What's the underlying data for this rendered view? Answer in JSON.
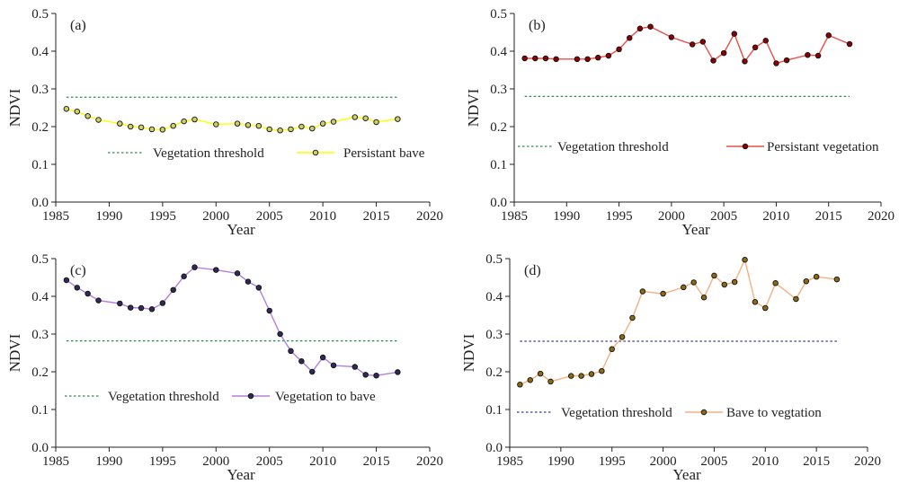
{
  "chart_data": [
    {
      "type": "line",
      "panel_label": "(a)",
      "xlabel": "Year",
      "ylabel": "NDVI",
      "xlim": [
        1985,
        2020
      ],
      "ylim": [
        0,
        0.5
      ],
      "xticks": [
        1985,
        1990,
        1995,
        2000,
        2005,
        2010,
        2015,
        2020
      ],
      "yticks": [
        0.0,
        0.1,
        0.2,
        0.3,
        0.4,
        0.5
      ],
      "legend_position": "lower-middle",
      "threshold": {
        "label": "Vegetation threshold",
        "value": 0.278,
        "color": "#2e8b57",
        "x_start": 1986,
        "x_end": 2017
      },
      "series": [
        {
          "name": "Persistant bave",
          "color": "#ffff00",
          "marker_fill": "#cfcf6a",
          "x": [
            1986,
            1987,
            1988,
            1989,
            1991,
            1992,
            1993,
            1994,
            1995,
            1996,
            1997,
            1998,
            2000,
            2002,
            2003,
            2004,
            2005,
            2006,
            2007,
            2008,
            2009,
            2010,
            2011,
            2013,
            2014,
            2015,
            2017
          ],
          "y": [
            0.247,
            0.24,
            0.228,
            0.218,
            0.208,
            0.2,
            0.198,
            0.193,
            0.192,
            0.202,
            0.214,
            0.219,
            0.206,
            0.208,
            0.204,
            0.202,
            0.193,
            0.19,
            0.193,
            0.2,
            0.195,
            0.208,
            0.213,
            0.225,
            0.222,
            0.212,
            0.22
          ]
        }
      ]
    },
    {
      "type": "line",
      "panel_label": "(b)",
      "xlabel": "Year",
      "ylabel": "NDVI",
      "xlim": [
        1985,
        2020
      ],
      "ylim": [
        0,
        0.5
      ],
      "xticks": [
        1985,
        1990,
        1995,
        2000,
        2005,
        2010,
        2015,
        2020
      ],
      "yticks": [
        0.0,
        0.1,
        0.2,
        0.3,
        0.4,
        0.5
      ],
      "legend_position": "lower-middle",
      "threshold": {
        "label": "Vegetation threshold",
        "value": 0.28,
        "color": "#2e8b57",
        "x_start": 1986,
        "x_end": 2017
      },
      "series": [
        {
          "name": "Persistant vegetation",
          "color": "#e8504a",
          "marker_fill": "#8b0000",
          "x": [
            1986,
            1987,
            1988,
            1989,
            1991,
            1992,
            1993,
            1994,
            1995,
            1996,
            1997,
            1998,
            2000,
            2002,
            2003,
            2004,
            2005,
            2006,
            2007,
            2008,
            2009,
            2010,
            2011,
            2013,
            2014,
            2015,
            2017
          ],
          "y": [
            0.381,
            0.381,
            0.381,
            0.379,
            0.379,
            0.379,
            0.383,
            0.388,
            0.405,
            0.435,
            0.46,
            0.465,
            0.437,
            0.418,
            0.425,
            0.375,
            0.395,
            0.446,
            0.373,
            0.41,
            0.428,
            0.368,
            0.376,
            0.39,
            0.388,
            0.442,
            0.419
          ]
        }
      ]
    },
    {
      "type": "line",
      "panel_label": "(c)",
      "xlabel": "Year",
      "ylabel": "NDVI",
      "xlim": [
        1985,
        2020
      ],
      "ylim": [
        0,
        0.5
      ],
      "xticks": [
        1985,
        1990,
        1995,
        2000,
        2005,
        2010,
        2015,
        2020
      ],
      "yticks": [
        0.0,
        0.1,
        0.2,
        0.3,
        0.4,
        0.5
      ],
      "legend_position": "lower-middle",
      "threshold": {
        "label": "Vegetation threshold",
        "value": 0.282,
        "color": "#2e8b57",
        "x_start": 1986,
        "x_end": 2017
      },
      "series": [
        {
          "name": "Vegetation to bave",
          "color": "#b57edc",
          "marker_fill": "#2e2a5a",
          "x": [
            1986,
            1987,
            1988,
            1989,
            1991,
            1992,
            1993,
            1994,
            1995,
            1996,
            1997,
            1998,
            2000,
            2002,
            2003,
            2004,
            2005,
            2006,
            2007,
            2008,
            2009,
            2010,
            2011,
            2013,
            2014,
            2015,
            2017
          ],
          "y": [
            0.443,
            0.423,
            0.407,
            0.389,
            0.381,
            0.37,
            0.369,
            0.366,
            0.382,
            0.417,
            0.453,
            0.477,
            0.47,
            0.461,
            0.439,
            0.423,
            0.362,
            0.3,
            0.255,
            0.228,
            0.2,
            0.238,
            0.217,
            0.213,
            0.192,
            0.19,
            0.199
          ]
        }
      ]
    },
    {
      "type": "line",
      "panel_label": "(d)",
      "xlabel": "Year",
      "ylabel": "NDVI",
      "xlim": [
        1985,
        2020
      ],
      "ylim": [
        0,
        0.5
      ],
      "xticks": [
        1985,
        1990,
        1995,
        2000,
        2005,
        2010,
        2015,
        2020
      ],
      "yticks": [
        0.0,
        0.1,
        0.2,
        0.3,
        0.4,
        0.5
      ],
      "legend_position": "lower-middle",
      "threshold": {
        "label": "Vegetation threshold",
        "value": 0.281,
        "color": "#3b3b9e",
        "x_start": 1986,
        "x_end": 2017
      },
      "series": [
        {
          "name": "Bave to vegtation",
          "color": "#f4b183",
          "marker_fill": "#8b6a10",
          "x": [
            1986,
            1987,
            1988,
            1989,
            1991,
            1992,
            1993,
            1994,
            1995,
            1996,
            1997,
            1998,
            2000,
            2002,
            2003,
            2004,
            2005,
            2006,
            2007,
            2008,
            2009,
            2010,
            2011,
            2013,
            2014,
            2015,
            2017
          ],
          "y": [
            0.166,
            0.178,
            0.195,
            0.174,
            0.189,
            0.189,
            0.194,
            0.202,
            0.26,
            0.292,
            0.343,
            0.413,
            0.407,
            0.424,
            0.437,
            0.397,
            0.455,
            0.431,
            0.438,
            0.497,
            0.385,
            0.369,
            0.435,
            0.393,
            0.44,
            0.452,
            0.445
          ]
        }
      ]
    }
  ]
}
